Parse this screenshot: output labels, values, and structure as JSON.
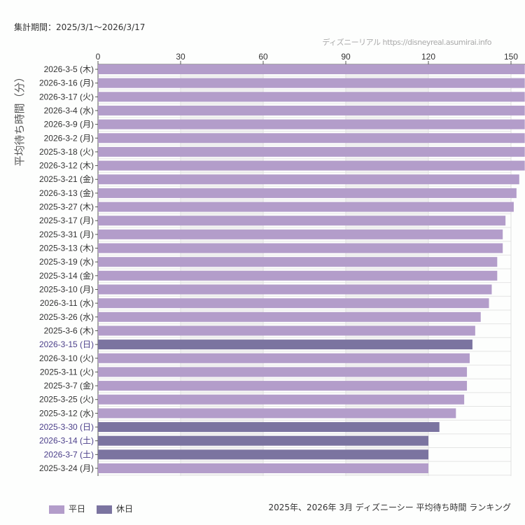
{
  "header": {
    "period": "集計期間：2025/3/1〜2026/3/17",
    "credit": "ディズニーリアル https://disneyreal.asumirai.info"
  },
  "legend": {
    "weekday": "平日",
    "holiday": "休日"
  },
  "footer": "2025年、2026年 3月 ディズニーシー 平均待ち時間 ランキング",
  "colors": {
    "weekday": "#b39dca",
    "holiday": "#7b74a0",
    "holiday_label": "#4b3f8a"
  },
  "chart_data": {
    "type": "bar",
    "orientation": "horizontal",
    "ylabel": "平均待ち時間（分）",
    "xlim": [
      0,
      155
    ],
    "xticks": [
      0,
      30,
      60,
      90,
      120,
      150
    ],
    "categories": [
      "2026-3-5 (木)",
      "2026-3-16 (月)",
      "2026-3-17 (火)",
      "2026-3-4 (水)",
      "2026-3-9 (月)",
      "2026-3-2 (月)",
      "2025-3-18 (火)",
      "2026-3-12 (木)",
      "2025-3-21 (金)",
      "2026-3-13 (金)",
      "2025-3-27 (木)",
      "2025-3-17 (月)",
      "2025-3-31 (月)",
      "2025-3-13 (木)",
      "2025-3-19 (水)",
      "2025-3-14 (金)",
      "2025-3-10 (月)",
      "2026-3-11 (水)",
      "2025-3-26 (水)",
      "2025-3-6 (木)",
      "2026-3-15 (日)",
      "2026-3-10 (火)",
      "2025-3-11 (火)",
      "2025-3-7 (金)",
      "2025-3-25 (火)",
      "2025-3-12 (水)",
      "2025-3-30 (日)",
      "2026-3-14 (土)",
      "2026-3-7 (土)",
      "2025-3-24 (月)"
    ],
    "values": [
      155,
      155,
      155,
      155,
      155,
      155,
      155,
      155,
      153,
      152,
      151,
      148,
      147,
      147,
      145,
      145,
      143,
      142,
      139,
      137,
      136,
      135,
      134,
      134,
      133,
      130,
      124,
      120,
      120,
      120
    ],
    "holiday": [
      false,
      false,
      false,
      false,
      false,
      false,
      false,
      false,
      false,
      false,
      false,
      false,
      false,
      false,
      false,
      false,
      false,
      false,
      false,
      false,
      true,
      false,
      false,
      false,
      false,
      false,
      true,
      true,
      true,
      false
    ]
  }
}
